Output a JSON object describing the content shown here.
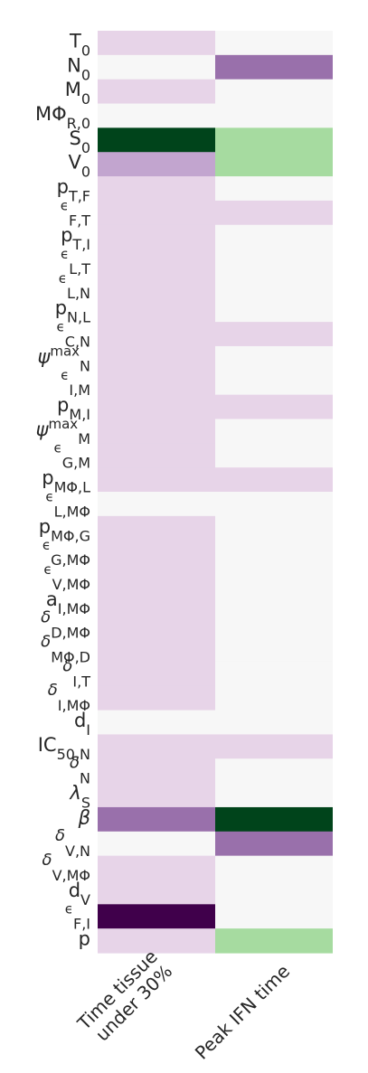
{
  "chart_data": {
    "type": "heatmap",
    "columns": [
      "Time tissue\nunder 30%",
      "Peak IFN time"
    ],
    "rows": [
      {
        "label": [
          [
            "T",
            ""
          ],
          [
            "0",
            "sub"
          ]
        ],
        "values": [
          1,
          0
        ]
      },
      {
        "label": [
          [
            "N",
            ""
          ],
          [
            "0",
            "sub"
          ]
        ],
        "values": [
          0,
          2
        ]
      },
      {
        "label": [
          [
            "M",
            ""
          ],
          [
            "0",
            "sub"
          ]
        ],
        "values": [
          1,
          0
        ]
      },
      {
        "label": [
          [
            "MΦ",
            ""
          ],
          [
            "R,0",
            "sub"
          ]
        ],
        "values": [
          0,
          0
        ]
      },
      {
        "label": [
          [
            "S",
            ""
          ],
          [
            "0",
            "sub"
          ]
        ],
        "values": [
          -4,
          -1
        ]
      },
      {
        "label": [
          [
            "V",
            ""
          ],
          [
            "0",
            "sub"
          ]
        ],
        "values": [
          1.5,
          -1
        ]
      },
      {
        "label": [
          [
            "p",
            ""
          ],
          [
            "T,F",
            "sub"
          ]
        ],
        "values": [
          1,
          0
        ]
      },
      {
        "label": [
          [
            "ϵ",
            "sup"
          ],
          [
            "F,T",
            "sub"
          ]
        ],
        "values": [
          1,
          1
        ]
      },
      {
        "label": [
          [
            "p",
            ""
          ],
          [
            "T,I",
            "sub"
          ]
        ],
        "values": [
          1,
          0
        ]
      },
      {
        "label": [
          [
            "ϵ",
            "sup"
          ],
          [
            "L,T",
            "sub"
          ]
        ],
        "values": [
          1,
          0
        ]
      },
      {
        "label": [
          [
            "ϵ",
            "sup"
          ],
          [
            "L,N",
            "sub"
          ]
        ],
        "values": [
          1,
          0
        ]
      },
      {
        "label": [
          [
            "p",
            ""
          ],
          [
            "N,L",
            "sub"
          ]
        ],
        "values": [
          1,
          0
        ]
      },
      {
        "label": [
          [
            "ϵ",
            "sup"
          ],
          [
            "C,N",
            "sub"
          ]
        ],
        "values": [
          1,
          1
        ]
      },
      {
        "label": [
          [
            "ψ",
            "it"
          ],
          [
            "max",
            "sup"
          ],
          [
            "N",
            "sub"
          ]
        ],
        "values": [
          1,
          0
        ]
      },
      {
        "label": [
          [
            "ϵ",
            "sup"
          ],
          [
            "I,M",
            "sub"
          ]
        ],
        "values": [
          1,
          0
        ]
      },
      {
        "label": [
          [
            "p",
            ""
          ],
          [
            "M,I",
            "sub"
          ]
        ],
        "values": [
          1,
          1
        ]
      },
      {
        "label": [
          [
            "ψ",
            "it"
          ],
          [
            "max",
            "sup"
          ],
          [
            "M",
            "sub"
          ]
        ],
        "values": [
          1,
          0
        ]
      },
      {
        "label": [
          [
            "ϵ",
            "sup"
          ],
          [
            "G,M",
            "sub"
          ]
        ],
        "values": [
          1,
          0
        ]
      },
      {
        "label": [
          [
            "p",
            ""
          ],
          [
            "MΦ,L",
            "sub"
          ]
        ],
        "values": [
          1,
          1
        ]
      },
      {
        "label": [
          [
            "ϵ",
            "sup"
          ],
          [
            "L,MΦ",
            "sub"
          ]
        ],
        "values": [
          0,
          0
        ]
      },
      {
        "label": [
          [
            "p",
            ""
          ],
          [
            "MΦ,G",
            "sub"
          ]
        ],
        "values": [
          1,
          0
        ]
      },
      {
        "label": [
          [
            "ϵ",
            "sup"
          ],
          [
            "G,MΦ",
            "sub"
          ]
        ],
        "values": [
          1,
          0
        ]
      },
      {
        "label": [
          [
            "ϵ",
            "sup"
          ],
          [
            "V,MΦ",
            "sub"
          ]
        ],
        "values": [
          1,
          0
        ]
      },
      {
        "label": [
          [
            "a",
            ""
          ],
          [
            "I,MΦ",
            "sub"
          ]
        ],
        "values": [
          1,
          0
        ]
      },
      {
        "label": [
          [
            "δ",
            "itsup"
          ],
          [
            "D,MΦ",
            "sub"
          ]
        ],
        "values": [
          1,
          0
        ]
      },
      {
        "label": [
          [
            "δ",
            "itsup"
          ],
          [
            "MΦ,D",
            "sub"
          ]
        ],
        "values": [
          1,
          0
        ]
      },
      {
        "label": [
          [
            "δ",
            "itsup"
          ],
          [
            "I,T",
            "sub"
          ]
        ],
        "values": [
          1,
          0
        ]
      },
      {
        "label": [
          [
            "δ",
            "itsup"
          ],
          [
            "I,MΦ",
            "sub"
          ]
        ],
        "values": [
          1,
          0
        ]
      },
      {
        "label": [
          [
            "d",
            ""
          ],
          [
            "I",
            "sub"
          ]
        ],
        "values": [
          0,
          0
        ]
      },
      {
        "label": [
          [
            "IC",
            ""
          ],
          [
            "50,N",
            "sub"
          ]
        ],
        "values": [
          1,
          1
        ]
      },
      {
        "label": [
          [
            "δ",
            "itsup"
          ],
          [
            "N",
            "sub"
          ]
        ],
        "values": [
          1,
          0
        ]
      },
      {
        "label": [
          [
            "λ",
            "it"
          ],
          [
            "S",
            "sub"
          ]
        ],
        "values": [
          1,
          0
        ]
      },
      {
        "label": [
          [
            "β",
            "it"
          ]
        ],
        "values": [
          2,
          -4
        ]
      },
      {
        "label": [
          [
            "δ",
            "itsup"
          ],
          [
            "V,N",
            "sub"
          ]
        ],
        "values": [
          0,
          2
        ]
      },
      {
        "label": [
          [
            "δ",
            "itsup"
          ],
          [
            "V,MΦ",
            "sub"
          ]
        ],
        "values": [
          1,
          0
        ]
      },
      {
        "label": [
          [
            "d",
            ""
          ],
          [
            "V",
            "sub"
          ]
        ],
        "values": [
          1,
          0
        ]
      },
      {
        "label": [
          [
            "ϵ",
            "sup"
          ],
          [
            "F,I",
            "sub"
          ]
        ],
        "values": [
          4,
          0
        ]
      },
      {
        "label": [
          [
            "p",
            ""
          ]
        ],
        "values": [
          1,
          -1
        ]
      }
    ],
    "value_scale": [
      -4,
      4
    ],
    "colormap": "PRGn (reversed: purple positive, green negative)",
    "colors": {
      "-4": "#00441b",
      "-1": "#a6dba0",
      "0": "#f7f7f7",
      "1": "#e7d4e8",
      "1.5": "#c2a5cf",
      "2": "#9970ab",
      "4": "#40004b"
    },
    "grid": false,
    "legend": "none"
  }
}
